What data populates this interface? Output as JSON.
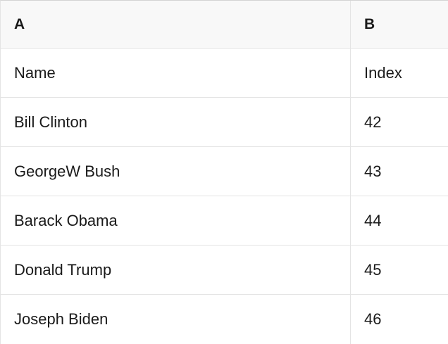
{
  "table": {
    "column_headers": {
      "a": "A",
      "b": "B"
    },
    "rows": [
      {
        "name": "Name",
        "index": "Index"
      },
      {
        "name": "Bill Clinton",
        "index": "42"
      },
      {
        "name": "GeorgeW Bush",
        "index": "43"
      },
      {
        "name": "Barack Obama",
        "index": "44"
      },
      {
        "name": "Donald Trump",
        "index": "45"
      },
      {
        "name": "Joseph Biden",
        "index": "46"
      }
    ]
  },
  "colors": {
    "header_background": "#f8f8f8",
    "row_background": "#ffffff",
    "grid_border": "#e4e4e4",
    "top_border": "#d4d4d4",
    "text": "#1a1a1a"
  }
}
